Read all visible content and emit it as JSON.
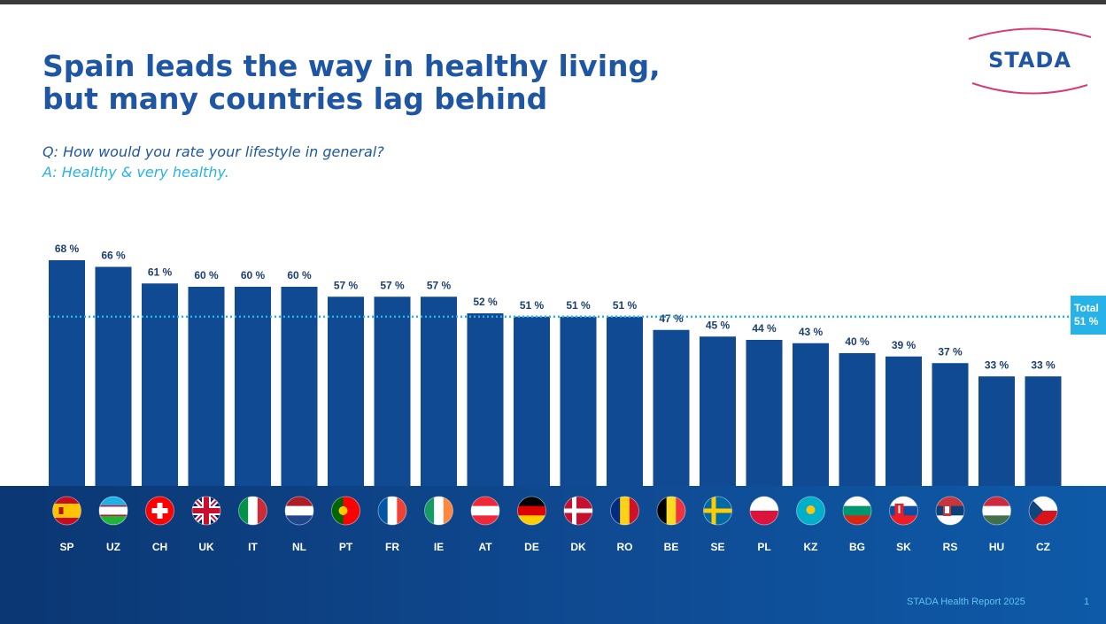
{
  "title_lines": [
    "Spain leads the way in healthy living,",
    "but many countries lag behind"
  ],
  "question": "Q: How would you rate your lifestyle in general?",
  "answer": "A: Healthy & very healthy.",
  "logo_text": "STADA",
  "footer_text": "STADA Health Report 2025",
  "page_number": "1",
  "colors": {
    "title": "#1f56a3",
    "answer": "#27b3e8",
    "bar": "#0f4a92",
    "total_line": "#27b3e8",
    "logo_swoosh": "#d63c76"
  },
  "chart_data": {
    "type": "bar",
    "categories": [
      "SP",
      "UZ",
      "CH",
      "UK",
      "IT",
      "NL",
      "PT",
      "FR",
      "IE",
      "AT",
      "DE",
      "DK",
      "RO",
      "BE",
      "SE",
      "PL",
      "KZ",
      "BG",
      "SK",
      "RS",
      "HU",
      "CZ"
    ],
    "values": [
      68,
      66,
      61,
      60,
      60,
      60,
      57,
      57,
      57,
      52,
      51,
      51,
      51,
      47,
      45,
      44,
      43,
      40,
      39,
      37,
      33,
      33
    ],
    "value_labels": [
      "68 %",
      "66 %",
      "61 %",
      "60 %",
      "60 %",
      "60 %",
      "57 %",
      "57 %",
      "57 %",
      "52 %",
      "51 %",
      "51 %",
      "51 %",
      "47 %",
      "45 %",
      "44 %",
      "43 %",
      "40 %",
      "39 %",
      "37 %",
      "33 %",
      "33 %"
    ],
    "unit": "%",
    "ylim": [
      0,
      100
    ],
    "reference_line": {
      "label": "Total",
      "value": 51,
      "value_label": "51 %"
    },
    "flags": [
      "spain-flag-icon",
      "uzbekistan-flag-icon",
      "switzerland-flag-icon",
      "uk-flag-icon",
      "italy-flag-icon",
      "netherlands-flag-icon",
      "portugal-flag-icon",
      "france-flag-icon",
      "ireland-flag-icon",
      "austria-flag-icon",
      "germany-flag-icon",
      "denmark-flag-icon",
      "romania-flag-icon",
      "belgium-flag-icon",
      "sweden-flag-icon",
      "poland-flag-icon",
      "kazakhstan-flag-icon",
      "bulgaria-flag-icon",
      "slovakia-flag-icon",
      "serbia-flag-icon",
      "hungary-flag-icon",
      "czechia-flag-icon"
    ],
    "grid": false,
    "legend": "none"
  }
}
